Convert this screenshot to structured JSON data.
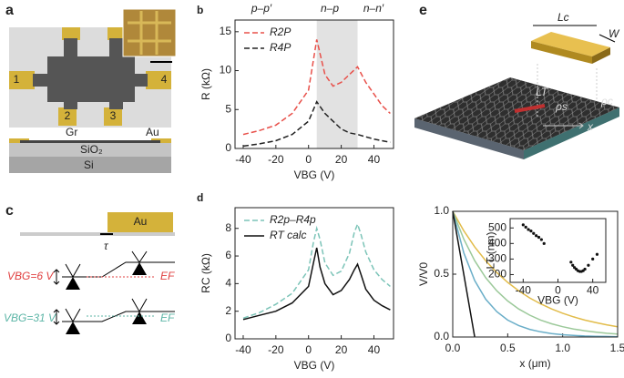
{
  "panel_a": {
    "label": "a",
    "pads": [
      "1",
      "2",
      "3",
      "4"
    ],
    "layers": [
      "Gr",
      "Au",
      "SiO₂",
      "Si"
    ]
  },
  "panel_c": {
    "label": "c",
    "electrode": "Au",
    "tau": "τ",
    "rows": [
      {
        "gate": "VBG=6 V",
        "level": "EF"
      },
      {
        "gate": "VBG=31 V",
        "level": "EF"
      }
    ]
  },
  "panel_e": {
    "label": "e",
    "labels": [
      "Lc",
      "W",
      "LT",
      "ρs",
      "ρc",
      "x"
    ]
  },
  "chart_data": [
    {
      "type": "line",
      "panel_label": "b",
      "xlabel": "VBG (V)",
      "ylabel": "R (kΩ)",
      "annotations": [
        "p–p′",
        "n–p",
        "n–n′"
      ],
      "shaded_range": [
        5,
        30
      ],
      "x": [
        -40,
        -30,
        -20,
        -10,
        0,
        5,
        10,
        15,
        20,
        25,
        30,
        35,
        40,
        45,
        50
      ],
      "series": [
        {
          "name": "R2P",
          "color": "#e8504a",
          "dashed": true,
          "values": [
            1.8,
            2.3,
            3.0,
            4.5,
            7.5,
            14.0,
            9.5,
            8.0,
            8.5,
            9.5,
            10.5,
            8.5,
            7.0,
            5.5,
            4.5
          ]
        },
        {
          "name": "R4P",
          "color": "#222222",
          "dashed": true,
          "values": [
            0.3,
            0.6,
            1.0,
            1.8,
            3.5,
            6.0,
            4.5,
            3.5,
            2.5,
            2.0,
            1.8,
            1.5,
            1.2,
            1.0,
            0.8
          ]
        }
      ],
      "xlim": [
        -45,
        52
      ],
      "ylim": [
        0,
        16.5
      ],
      "xticks": [
        -40,
        -20,
        0,
        20,
        40
      ],
      "yticks": [
        0,
        5,
        10,
        15
      ]
    },
    {
      "type": "line",
      "panel_label": "d",
      "xlabel": "VBG (V)",
      "ylabel": "RC (kΩ)",
      "x": [
        -40,
        -30,
        -20,
        -10,
        0,
        3,
        5,
        7,
        10,
        15,
        20,
        25,
        28,
        30,
        32,
        35,
        40,
        45,
        50
      ],
      "series": [
        {
          "name": "R2p–R4p",
          "color": "#7cc4b8",
          "dashed": true,
          "values": [
            1.5,
            1.9,
            2.5,
            3.3,
            5.0,
            7.0,
            8.0,
            7.2,
            5.5,
            4.6,
            4.9,
            6.2,
            7.7,
            8.3,
            7.6,
            6.3,
            5.0,
            4.3,
            3.8
          ]
        },
        {
          "name": "RT calc",
          "color": "#111111",
          "dashed": false,
          "values": [
            1.4,
            1.7,
            2.0,
            2.6,
            3.8,
            5.5,
            6.6,
            5.2,
            4.0,
            3.2,
            3.5,
            4.3,
            5.0,
            5.4,
            4.7,
            3.6,
            2.8,
            2.4,
            2.1
          ]
        }
      ],
      "xlim": [
        -45,
        52
      ],
      "ylim": [
        0,
        9.5
      ],
      "xticks": [
        -40,
        -20,
        0,
        20,
        40
      ],
      "yticks": [
        0,
        2,
        4,
        6,
        8
      ]
    },
    {
      "type": "line",
      "xlabel": "x (μm)",
      "ylabel": "V/V0",
      "x": [
        0,
        0.1,
        0.2,
        0.3,
        0.4,
        0.5,
        0.6,
        0.7,
        0.8,
        0.9,
        1.0,
        1.1,
        1.2,
        1.3,
        1.4,
        1.5
      ],
      "series": [
        {
          "color": "#e2bc4a",
          "values": [
            1,
            0.846,
            0.717,
            0.607,
            0.513,
            0.435,
            0.368,
            0.311,
            0.264,
            0.223,
            0.189,
            0.16,
            0.135,
            0.115,
            0.097,
            0.082
          ]
        },
        {
          "color": "#9cc99a",
          "values": [
            1,
            0.779,
            0.607,
            0.472,
            0.368,
            0.287,
            0.223,
            0.174,
            0.135,
            0.105,
            0.082,
            0.064,
            0.05,
            0.039,
            0.03,
            0.024
          ]
        },
        {
          "color": "#6aaec8",
          "values": [
            1,
            0.67,
            0.449,
            0.301,
            0.202,
            0.135,
            0.091,
            0.061,
            0.041,
            0.027,
            0.018,
            0.012,
            0.008,
            0.006,
            0.004,
            0.002
          ]
        },
        {
          "color": "#111111",
          "values": [
            1,
            0.5,
            0,
            null,
            null,
            null,
            null,
            null,
            null,
            null,
            null,
            null,
            null,
            null,
            null,
            null
          ]
        }
      ],
      "xlim": [
        0,
        1.5
      ],
      "ylim": [
        0,
        1
      ],
      "xticks": [
        {
          "value": 0,
          "label": "0.0"
        },
        {
          "value": 0.5,
          "label": "0.5"
        },
        {
          "value": 1,
          "label": "1.0"
        },
        {
          "value": 1.5,
          "label": "1.5"
        }
      ],
      "yticks": [
        {
          "value": 0,
          "label": "0.0"
        },
        {
          "value": 0.5,
          "label": "0.5"
        },
        {
          "value": 1,
          "label": "1.0"
        }
      ]
    },
    {
      "type": "scatter",
      "xlabel": "VBG (V)",
      "ylabel": "LT (nm)",
      "color": "#111111",
      "x": [
        -40,
        -37,
        -34,
        -31,
        -28,
        -25,
        -22,
        -19,
        -16,
        15,
        17,
        19,
        21,
        23,
        25,
        27,
        29,
        31,
        35,
        40,
        45
      ],
      "values": [
        520,
        505,
        490,
        480,
        465,
        450,
        440,
        425,
        400,
        280,
        260,
        245,
        235,
        225,
        220,
        220,
        225,
        235,
        260,
        300,
        330
      ],
      "xlim": [
        -55,
        55
      ],
      "ylim": [
        150,
        560
      ],
      "xticks": [
        -40,
        0,
        40
      ],
      "yticks": [
        200,
        300,
        400,
        500
      ]
    }
  ]
}
